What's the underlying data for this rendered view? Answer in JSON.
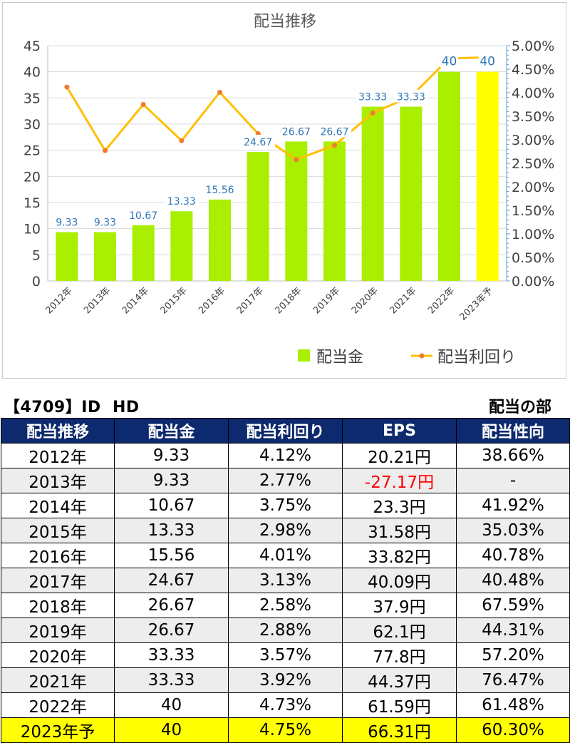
{
  "chart_data": {
    "type": "bar",
    "title": "配当推移",
    "categories": [
      "2012年",
      "2013年",
      "2014年",
      "2015年",
      "2016年",
      "2017年",
      "2018年",
      "2019年",
      "2020年",
      "2021年",
      "2022年",
      "2023年予"
    ],
    "series": [
      {
        "name": "配当金",
        "type": "bar",
        "axis": "left",
        "color": "#aaee00",
        "values": [
          9.33,
          9.33,
          10.67,
          13.33,
          15.56,
          24.67,
          26.67,
          26.67,
          33.33,
          33.33,
          40,
          40
        ],
        "labels": [
          "9.33",
          "9.33",
          "10.67",
          "13.33",
          "15.56",
          "24.67",
          "26.67",
          "26.67",
          "33.33",
          "33.33",
          "40",
          "40"
        ],
        "highlight_last_color": "#ffff00"
      },
      {
        "name": "配当利回り",
        "type": "line",
        "axis": "right",
        "color": "#ffc000",
        "marker_color": "#ed7d31",
        "values": [
          4.12,
          2.77,
          3.75,
          2.98,
          4.01,
          3.13,
          2.58,
          2.88,
          3.57,
          3.92,
          4.73,
          4.75
        ]
      }
    ],
    "ylim": [
      0,
      45
    ],
    "y_ticks": [
      "0",
      "5",
      "10",
      "15",
      "20",
      "25",
      "30",
      "35",
      "40",
      "45"
    ],
    "y2lim": [
      0,
      5
    ],
    "y2_ticks": [
      "0.00%",
      "0.50%",
      "1.00%",
      "1.50%",
      "2.00%",
      "2.50%",
      "3.00%",
      "3.50%",
      "4.00%",
      "4.50%",
      "5.00%"
    ],
    "grid": true,
    "legend_position": "bottom-right"
  },
  "table": {
    "code": "【4709】ID",
    "company": "HD",
    "section": "配当の部",
    "headers": [
      "配当推移",
      "配当金",
      "配当利回り",
      "EPS",
      "配当性向"
    ],
    "rows": [
      [
        "2012年",
        "9.33",
        "4.12%",
        "20.21円",
        "38.66%"
      ],
      [
        "2013年",
        "9.33",
        "2.77%",
        "-27.17円",
        "-"
      ],
      [
        "2014年",
        "10.67",
        "3.75%",
        "23.3円",
        "41.92%"
      ],
      [
        "2015年",
        "13.33",
        "2.98%",
        "31.58円",
        "35.03%"
      ],
      [
        "2016年",
        "15.56",
        "4.01%",
        "33.82円",
        "40.78%"
      ],
      [
        "2017年",
        "24.67",
        "3.13%",
        "40.09円",
        "40.48%"
      ],
      [
        "2018年",
        "26.67",
        "2.58%",
        "37.9円",
        "67.59%"
      ],
      [
        "2019年",
        "26.67",
        "2.88%",
        "62.1円",
        "44.31%"
      ],
      [
        "2020年",
        "33.33",
        "3.57%",
        "77.8円",
        "57.20%"
      ],
      [
        "2021年",
        "33.33",
        "3.92%",
        "44.37円",
        "76.47%"
      ],
      [
        "2022年",
        "40",
        "4.73%",
        "61.59円",
        "61.48%"
      ],
      [
        "2023年予",
        "40",
        "4.75%",
        "66.31円",
        "60.30%"
      ]
    ],
    "negative_color": "#ff0000",
    "header_color": "#0e2a6e",
    "highlight_color": "#ffff00"
  }
}
